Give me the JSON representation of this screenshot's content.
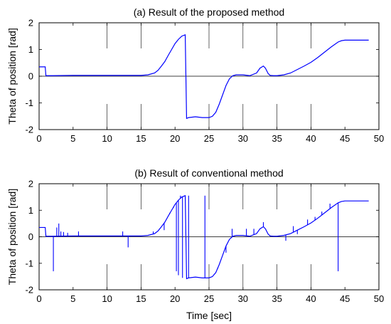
{
  "chart_data": [
    {
      "type": "line",
      "title": "(a) Result of the proposed method",
      "xlabel": "",
      "ylabel": "Theta of position [rad]",
      "xlim": [
        0,
        50
      ],
      "ylim": [
        -2,
        2
      ],
      "xticks": [
        "0",
        "5",
        "10",
        "15",
        "20",
        "25",
        "30",
        "35",
        "40",
        "45",
        "50"
      ],
      "yticks": [
        "-2",
        "-1",
        "0",
        "1",
        "2"
      ],
      "grid": false,
      "zero_line": true,
      "line_color": "#0000ff",
      "series": [
        {
          "x": [
            0,
            0.1,
            0.9,
            1.0,
            2,
            5,
            10,
            15,
            16,
            17,
            17.5,
            18,
            18.5,
            19,
            19.5,
            20,
            20.5,
            21,
            21.5,
            21.6,
            21.7,
            22,
            23,
            24,
            25,
            25.5,
            26,
            26.5,
            27,
            27.5,
            28,
            28.5,
            29,
            29.5,
            30,
            31,
            32,
            32.5,
            33,
            33.3,
            33.7,
            34,
            34.5,
            35,
            36,
            37,
            38,
            39,
            40,
            41,
            42,
            43,
            44,
            44.5,
            45,
            46,
            48.5
          ],
          "y": [
            0.35,
            0.35,
            0.35,
            0.02,
            0.02,
            0.03,
            0.03,
            0.03,
            0.05,
            0.12,
            0.22,
            0.38,
            0.55,
            0.78,
            1.0,
            1.22,
            1.38,
            1.5,
            1.55,
            0.0,
            -1.58,
            -1.55,
            -1.52,
            -1.55,
            -1.55,
            -1.5,
            -1.35,
            -1.05,
            -0.7,
            -0.35,
            -0.1,
            0.02,
            0.05,
            0.05,
            0.05,
            0.02,
            0.12,
            0.3,
            0.38,
            0.3,
            0.1,
            0.03,
            0.02,
            0.02,
            0.05,
            0.12,
            0.25,
            0.38,
            0.52,
            0.7,
            0.9,
            1.1,
            1.28,
            1.33,
            1.35,
            1.35,
            1.35
          ]
        }
      ]
    },
    {
      "type": "line",
      "title": "(b) Result of conventional method",
      "xlabel": "Time [sec]",
      "ylabel": "Theta of position [rad]",
      "xlim": [
        0,
        50
      ],
      "ylim": [
        -2,
        2
      ],
      "xticks": [
        "0",
        "5",
        "10",
        "15",
        "20",
        "25",
        "30",
        "35",
        "40",
        "45",
        "50"
      ],
      "yticks": [
        "-2",
        "-1",
        "0",
        "1",
        "2"
      ],
      "grid": false,
      "zero_line": true,
      "line_color": "#0000ff",
      "series": [
        {
          "x": [
            0,
            0.1,
            0.9,
            1.0,
            2,
            5,
            10,
            15,
            16,
            17,
            17.5,
            18,
            18.5,
            19,
            19.5,
            20,
            20.5,
            21,
            21.5,
            21.6,
            21.7,
            22,
            23,
            24,
            25,
            25.5,
            26,
            26.5,
            27,
            27.5,
            28,
            28.5,
            29,
            29.5,
            30,
            31,
            32,
            32.5,
            33,
            33.3,
            33.7,
            34,
            34.5,
            35,
            36,
            37,
            38,
            39,
            40,
            41,
            42,
            43,
            44,
            44.5,
            45,
            46,
            48.5
          ],
          "y": [
            0.35,
            0.35,
            0.35,
            0.02,
            0.02,
            0.03,
            0.03,
            0.03,
            0.05,
            0.12,
            0.22,
            0.38,
            0.55,
            0.78,
            1.0,
            1.22,
            1.38,
            1.5,
            1.55,
            0.0,
            -1.58,
            -1.55,
            -1.52,
            -1.55,
            -1.55,
            -1.5,
            -1.35,
            -1.05,
            -0.7,
            -0.35,
            -0.1,
            0.02,
            0.05,
            0.05,
            0.05,
            0.02,
            0.12,
            0.3,
            0.38,
            0.3,
            0.1,
            0.03,
            0.02,
            0.02,
            0.05,
            0.12,
            0.25,
            0.38,
            0.52,
            0.7,
            0.9,
            1.1,
            1.28,
            1.33,
            1.35,
            1.35,
            1.35
          ]
        }
      ],
      "spikes": [
        {
          "x": 2.1,
          "y": -1.3
        },
        {
          "x": 2.6,
          "y": 0.35
        },
        {
          "x": 2.9,
          "y": 0.5
        },
        {
          "x": 3.2,
          "y": 0.2
        },
        {
          "x": 3.6,
          "y": 0.18
        },
        {
          "x": 4.2,
          "y": 0.15
        },
        {
          "x": 5.8,
          "y": 0.2
        },
        {
          "x": 12.3,
          "y": 0.2
        },
        {
          "x": 13.1,
          "y": -0.4
        },
        {
          "x": 16.8,
          "y": 0.2
        },
        {
          "x": 18.4,
          "y": 0.25
        },
        {
          "x": 19.2,
          "y": 0.9
        },
        {
          "x": 19.8,
          "y": 1.1
        },
        {
          "x": 20.2,
          "y": -1.3
        },
        {
          "x": 20.5,
          "y": -1.45
        },
        {
          "x": 20.8,
          "y": 1.55
        },
        {
          "x": 21.1,
          "y": -1.55
        },
        {
          "x": 21.5,
          "y": 1.55
        },
        {
          "x": 22.0,
          "y": 1.55
        },
        {
          "x": 24.4,
          "y": 1.55
        },
        {
          "x": 26.3,
          "y": -1.2
        },
        {
          "x": 27.5,
          "y": -0.6
        },
        {
          "x": 28.4,
          "y": 0.3
        },
        {
          "x": 30.5,
          "y": 0.3
        },
        {
          "x": 31.6,
          "y": 0.3
        },
        {
          "x": 33.0,
          "y": 0.55
        },
        {
          "x": 36.3,
          "y": -0.15
        },
        {
          "x": 37.4,
          "y": 0.4
        },
        {
          "x": 38.0,
          "y": 0.1
        },
        {
          "x": 39.5,
          "y": 0.65
        },
        {
          "x": 40.6,
          "y": 0.75
        },
        {
          "x": 41.6,
          "y": 0.95
        },
        {
          "x": 42.8,
          "y": 1.25
        },
        {
          "x": 44.0,
          "y": -1.3
        }
      ]
    }
  ]
}
